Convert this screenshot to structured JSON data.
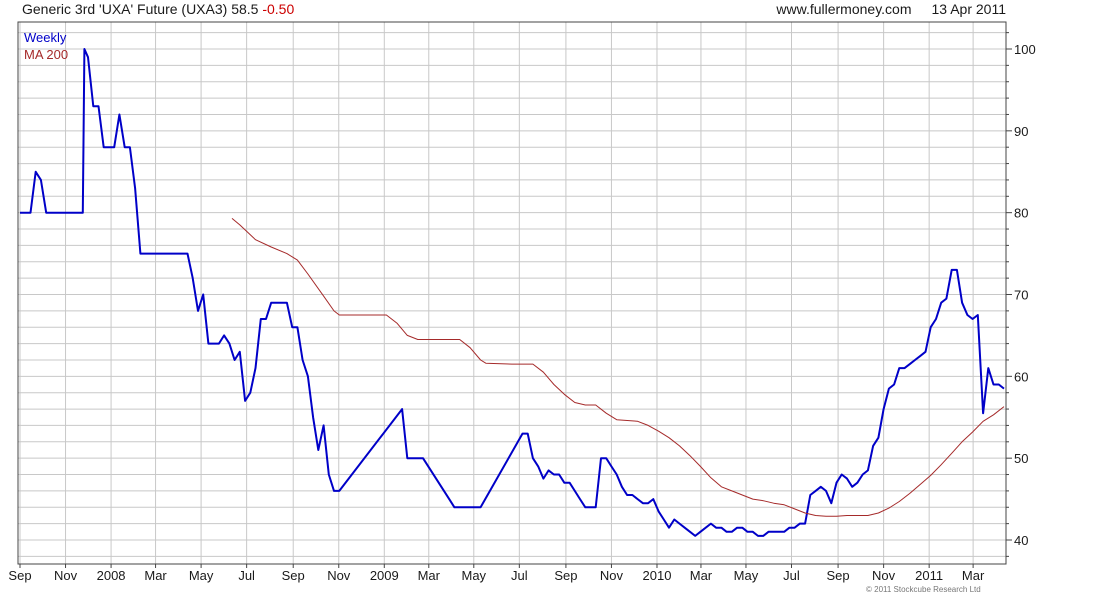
{
  "header": {
    "title": "Generic 3rd 'UXA' Future (UXA3)",
    "last": "58.5",
    "change": "-0.50",
    "site": "www.fullermoney.com",
    "date": "13 Apr 2011"
  },
  "footer": {
    "copyright": "© 2011 Stockcube Research Ltd"
  },
  "colors": {
    "weekly": "#0000c8",
    "ma200": "#a52a2a",
    "change_negative": "#cc0000",
    "grid": "#c8c8c8"
  },
  "chart_data": {
    "type": "line",
    "x_unit": "weeks since first plotted week (early Sep 2007)",
    "xlim": [
      0,
      188
    ],
    "ylim": [
      38,
      102
    ],
    "yticks": [
      40,
      50,
      60,
      70,
      80,
      90,
      100
    ],
    "grid": true,
    "legend_placement": "top-left",
    "x_tick_labels": [
      {
        "label": "Sep",
        "x": 0
      },
      {
        "label": "Nov",
        "x": 8.7
      },
      {
        "label": "2008",
        "x": 17.4
      },
      {
        "label": "Mar",
        "x": 25.9
      },
      {
        "label": "May",
        "x": 34.6
      },
      {
        "label": "Jul",
        "x": 43.3
      },
      {
        "label": "Sep",
        "x": 52.2
      },
      {
        "label": "Nov",
        "x": 60.9
      },
      {
        "label": "2009",
        "x": 69.6
      },
      {
        "label": "Mar",
        "x": 78.1
      },
      {
        "label": "May",
        "x": 86.7
      },
      {
        "label": "Jul",
        "x": 95.4
      },
      {
        "label": "Sep",
        "x": 104.3
      },
      {
        "label": "Nov",
        "x": 113.0
      },
      {
        "label": "2010",
        "x": 121.7
      },
      {
        "label": "Mar",
        "x": 130.1
      },
      {
        "label": "May",
        "x": 138.7
      },
      {
        "label": "Jul",
        "x": 147.4
      },
      {
        "label": "Sep",
        "x": 156.3
      },
      {
        "label": "Nov",
        "x": 165.0
      },
      {
        "label": "2011",
        "x": 173.7
      },
      {
        "label": "Mar",
        "x": 182.1
      }
    ],
    "series": [
      {
        "name": "Weekly",
        "points": [
          [
            0,
            80
          ],
          [
            2,
            80
          ],
          [
            3,
            85
          ],
          [
            4,
            84
          ],
          [
            5,
            80
          ],
          [
            6,
            80
          ],
          [
            8,
            80
          ],
          [
            9,
            80
          ],
          [
            11,
            80
          ],
          [
            12,
            80
          ],
          [
            12.3,
            100
          ],
          [
            13,
            99
          ],
          [
            14,
            93
          ],
          [
            15,
            93
          ],
          [
            16,
            88
          ],
          [
            17,
            88
          ],
          [
            18,
            88
          ],
          [
            19,
            92
          ],
          [
            20,
            88
          ],
          [
            21,
            88
          ],
          [
            22,
            83
          ],
          [
            23,
            75
          ],
          [
            24,
            75
          ],
          [
            26,
            75
          ],
          [
            28,
            75
          ],
          [
            30,
            75
          ],
          [
            32,
            75
          ],
          [
            33,
            72
          ],
          [
            34,
            68
          ],
          [
            35,
            70
          ],
          [
            36,
            64
          ],
          [
            37,
            64
          ],
          [
            38,
            64
          ],
          [
            39,
            65
          ],
          [
            40,
            64
          ],
          [
            41,
            62
          ],
          [
            42,
            63
          ],
          [
            43,
            57
          ],
          [
            44,
            58
          ],
          [
            45,
            61
          ],
          [
            46,
            67
          ],
          [
            47,
            67
          ],
          [
            48,
            69
          ],
          [
            49,
            69
          ],
          [
            50,
            69
          ],
          [
            51,
            69
          ],
          [
            52,
            66
          ],
          [
            53,
            66
          ],
          [
            54,
            62
          ],
          [
            55,
            60
          ],
          [
            56,
            55
          ],
          [
            57,
            51
          ],
          [
            58,
            54
          ],
          [
            59,
            48
          ],
          [
            60,
            46
          ],
          [
            61,
            46
          ],
          [
            73,
            56
          ],
          [
            74,
            50
          ],
          [
            75,
            50
          ],
          [
            76,
            50
          ],
          [
            77,
            50
          ],
          [
            82,
            45
          ],
          [
            83,
            44
          ],
          [
            84,
            44
          ],
          [
            85,
            44
          ],
          [
            86,
            44
          ],
          [
            87,
            44
          ],
          [
            88,
            44
          ],
          [
            96,
            53
          ],
          [
            97,
            53
          ],
          [
            98,
            50
          ],
          [
            99,
            49
          ],
          [
            100,
            47.5
          ],
          [
            101,
            48.5
          ],
          [
            102,
            48
          ],
          [
            103,
            48
          ],
          [
            104,
            47
          ],
          [
            105,
            47
          ],
          [
            106,
            46
          ],
          [
            107,
            45
          ],
          [
            108,
            44
          ],
          [
            109,
            44
          ],
          [
            110,
            44
          ],
          [
            111,
            50
          ],
          [
            112,
            50
          ],
          [
            113,
            49
          ],
          [
            114,
            48
          ],
          [
            115,
            46.5
          ],
          [
            116,
            45.5
          ],
          [
            117,
            45.5
          ],
          [
            118,
            45
          ],
          [
            119,
            44.5
          ],
          [
            120,
            44.5
          ],
          [
            121,
            45
          ],
          [
            122,
            43.5
          ],
          [
            123,
            42.5
          ],
          [
            124,
            41.5
          ],
          [
            125,
            42.5
          ],
          [
            126,
            42
          ],
          [
            127,
            41.5
          ],
          [
            128,
            41
          ],
          [
            129,
            40.5
          ],
          [
            130,
            41
          ],
          [
            131,
            41.5
          ],
          [
            132,
            42
          ],
          [
            133,
            41.5
          ],
          [
            134,
            41.5
          ],
          [
            135,
            41
          ],
          [
            136,
            41
          ],
          [
            137,
            41.5
          ],
          [
            138,
            41.5
          ],
          [
            139,
            41
          ],
          [
            140,
            41
          ],
          [
            141,
            40.5
          ],
          [
            142,
            40.5
          ],
          [
            143,
            41
          ],
          [
            144,
            41
          ],
          [
            145,
            41
          ],
          [
            146,
            41
          ],
          [
            147,
            41.5
          ],
          [
            148,
            41.5
          ],
          [
            149,
            42
          ],
          [
            150,
            42
          ],
          [
            151,
            45.5
          ],
          [
            152,
            46
          ],
          [
            153,
            46.5
          ],
          [
            154,
            46
          ],
          [
            155,
            44.5
          ],
          [
            156,
            47
          ],
          [
            157,
            48
          ],
          [
            158,
            47.5
          ],
          [
            159,
            46.5
          ],
          [
            160,
            47
          ],
          [
            161,
            48
          ],
          [
            162,
            48.5
          ],
          [
            163,
            51.5
          ],
          [
            164,
            52.5
          ],
          [
            165,
            56
          ],
          [
            166,
            58.5
          ],
          [
            167,
            59
          ],
          [
            168,
            61
          ],
          [
            169,
            61
          ],
          [
            170,
            61.5
          ],
          [
            171,
            62
          ],
          [
            172,
            62.5
          ],
          [
            173,
            63
          ],
          [
            174,
            66
          ],
          [
            175,
            67
          ],
          [
            176,
            69
          ],
          [
            177,
            69.5
          ],
          [
            178,
            73
          ],
          [
            179,
            73
          ],
          [
            180,
            69
          ],
          [
            181,
            67.5
          ],
          [
            182,
            67
          ],
          [
            183,
            67.5
          ],
          [
            184,
            55.5
          ],
          [
            185,
            61
          ],
          [
            186,
            59
          ],
          [
            187,
            59
          ],
          [
            188,
            58.5
          ]
        ]
      },
      {
        "name": "MA 200",
        "points": [
          [
            40.5,
            79.3
          ],
          [
            42,
            78.5
          ],
          [
            45,
            76.7
          ],
          [
            48,
            75.8
          ],
          [
            51,
            75
          ],
          [
            53,
            74.2
          ],
          [
            55,
            72.5
          ],
          [
            58,
            69.8
          ],
          [
            60,
            68
          ],
          [
            61,
            67.5
          ],
          [
            67,
            67.5
          ],
          [
            70,
            67.5
          ],
          [
            72,
            66.5
          ],
          [
            74,
            65
          ],
          [
            76,
            64.5
          ],
          [
            80,
            64.5
          ],
          [
            84,
            64.5
          ],
          [
            86,
            63.5
          ],
          [
            88,
            62
          ],
          [
            89,
            61.6
          ],
          [
            94,
            61.5
          ],
          [
            98,
            61.5
          ],
          [
            100,
            60.5
          ],
          [
            102,
            59
          ],
          [
            104,
            57.8
          ],
          [
            106,
            56.8
          ],
          [
            108,
            56.5
          ],
          [
            110,
            56.5
          ],
          [
            112,
            55.5
          ],
          [
            114,
            54.7
          ],
          [
            118,
            54.5
          ],
          [
            120,
            54
          ],
          [
            122,
            53.3
          ],
          [
            124,
            52.5
          ],
          [
            126,
            51.5
          ],
          [
            128,
            50.3
          ],
          [
            130,
            49
          ],
          [
            132,
            47.6
          ],
          [
            134,
            46.5
          ],
          [
            136,
            46
          ],
          [
            138,
            45.5
          ],
          [
            140,
            45
          ],
          [
            142,
            44.8
          ],
          [
            144,
            44.5
          ],
          [
            146,
            44.3
          ],
          [
            148,
            43.8
          ],
          [
            150,
            43.3
          ],
          [
            152,
            43
          ],
          [
            154,
            42.9
          ],
          [
            156,
            42.9
          ],
          [
            158,
            43
          ],
          [
            160,
            43
          ],
          [
            162,
            43
          ],
          [
            164,
            43.3
          ],
          [
            166,
            43.9
          ],
          [
            168,
            44.7
          ],
          [
            170,
            45.7
          ],
          [
            172,
            46.8
          ],
          [
            174,
            47.9
          ],
          [
            176,
            49.2
          ],
          [
            178,
            50.6
          ],
          [
            180,
            52
          ],
          [
            182,
            53.2
          ],
          [
            184,
            54.5
          ],
          [
            186,
            55.3
          ],
          [
            188,
            56.3
          ]
        ]
      }
    ]
  }
}
